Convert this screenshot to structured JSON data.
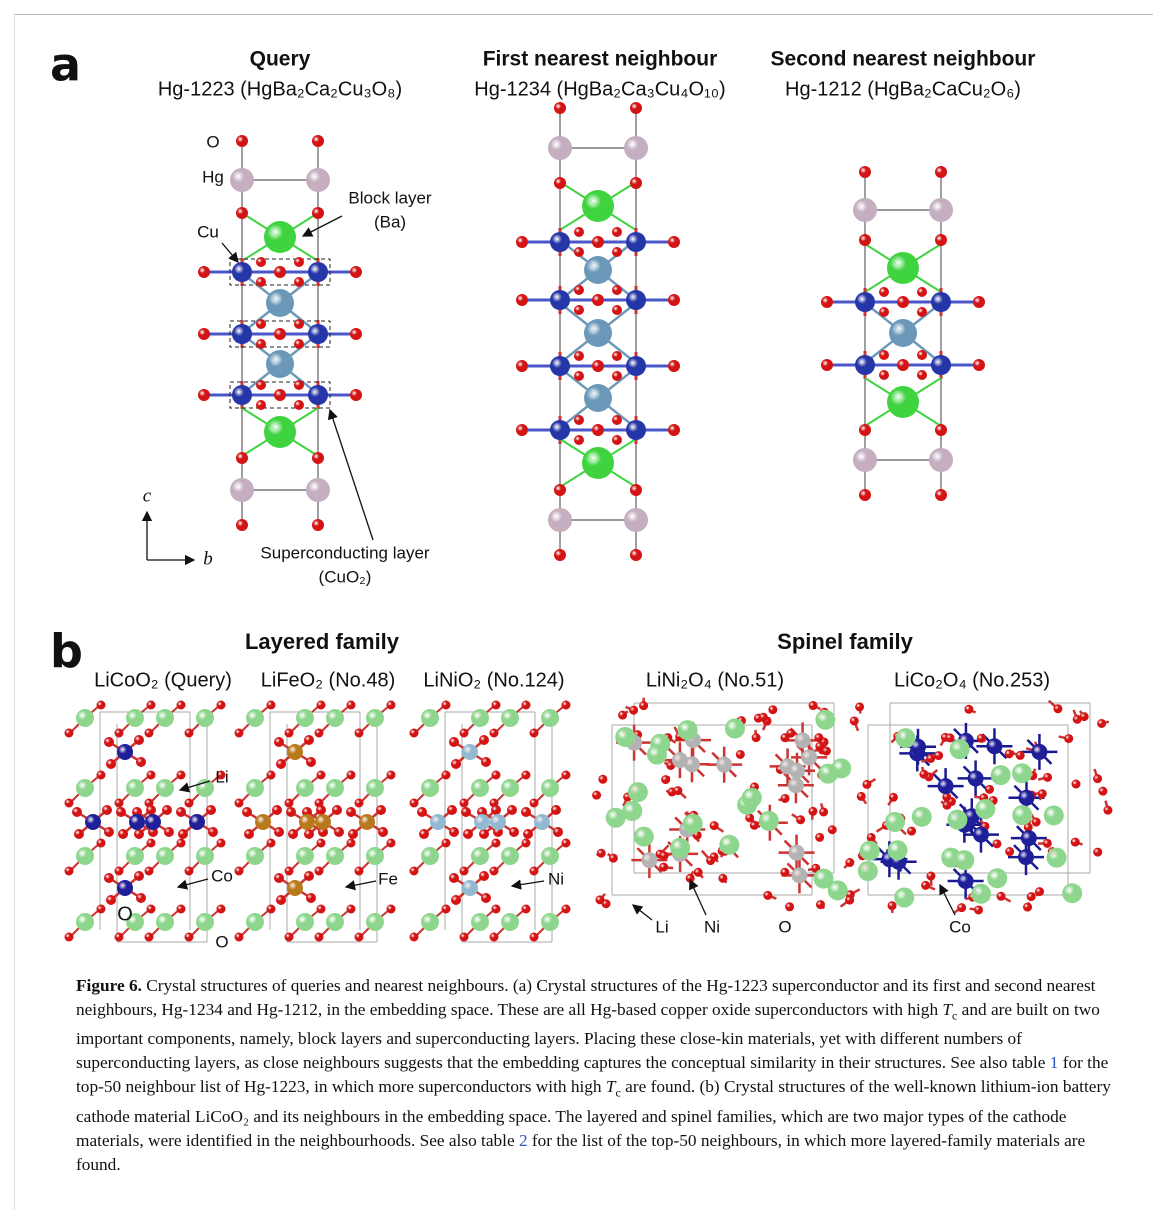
{
  "panel_a": {
    "label": "a",
    "structures": [
      {
        "heading": "Query",
        "formula": "Hg-1223 (HgBa₂Ca₂Cu₃O₈)"
      },
      {
        "heading": "First nearest neighbour",
        "formula": "Hg-1234 (HgBa₂Ca₃Cu₄O₁₀)"
      },
      {
        "heading": "Second nearest neighbour",
        "formula": "Hg-1212 (HgBa₂CaCu₂O₆)"
      }
    ],
    "annotations": {
      "o": "O",
      "hg": "Hg",
      "cu": "Cu",
      "block_layer": [
        "Block layer",
        "(Ba)"
      ],
      "superconducting_layer": [
        "Superconducting layer",
        "(CuO₂)"
      ],
      "axis_c": "c",
      "axis_b": "b"
    }
  },
  "panel_b": {
    "label": "b",
    "families": [
      "Layered family",
      "Spinel family"
    ],
    "structures": [
      "LiCoO₂ (Query)",
      "LiFeO₂ (No.48)",
      "LiNiO₂ (No.124)",
      "LiNi₂O₄ (No.51)",
      "LiCo₂O₄ (No.253)"
    ],
    "annotations": [
      "Li",
      "Co",
      "O",
      "O",
      "Fe",
      "Ni",
      "Li",
      "Ni",
      "O",
      "Co"
    ]
  },
  "caption": {
    "label": "Figure 6.",
    "parts": [
      " Crystal structures of queries and nearest neighbours. (a) Crystal structures of the Hg-1223 superconductor and its first and second nearest neighbours, Hg-1234 and Hg-1212, in the embedding space. These are all Hg-based copper oxide superconductors with high ",
      "T",
      "c",
      " and are built on two important components, namely, block layers and superconducting layers. Placing these close-kin materials, yet with different numbers of superconducting layers, as close neighbours suggests that the embedding captures the conceptual similarity in their structures. See also table ",
      "1",
      " for the top-50 neighbour list of Hg-1223, in which more superconductors with high ",
      "T",
      "c",
      " are found. (b) Crystal structures of the well-known lithium-ion battery cathode material LiCoO₂ and its neighbours in the embedding space. The layered and spinel families, which are two major types of the cathode materials, were identified in the neighbourhoods. See also table ",
      "2",
      " for the list of the top-50 neighbours, in which more layered-family materials are found."
    ]
  }
}
